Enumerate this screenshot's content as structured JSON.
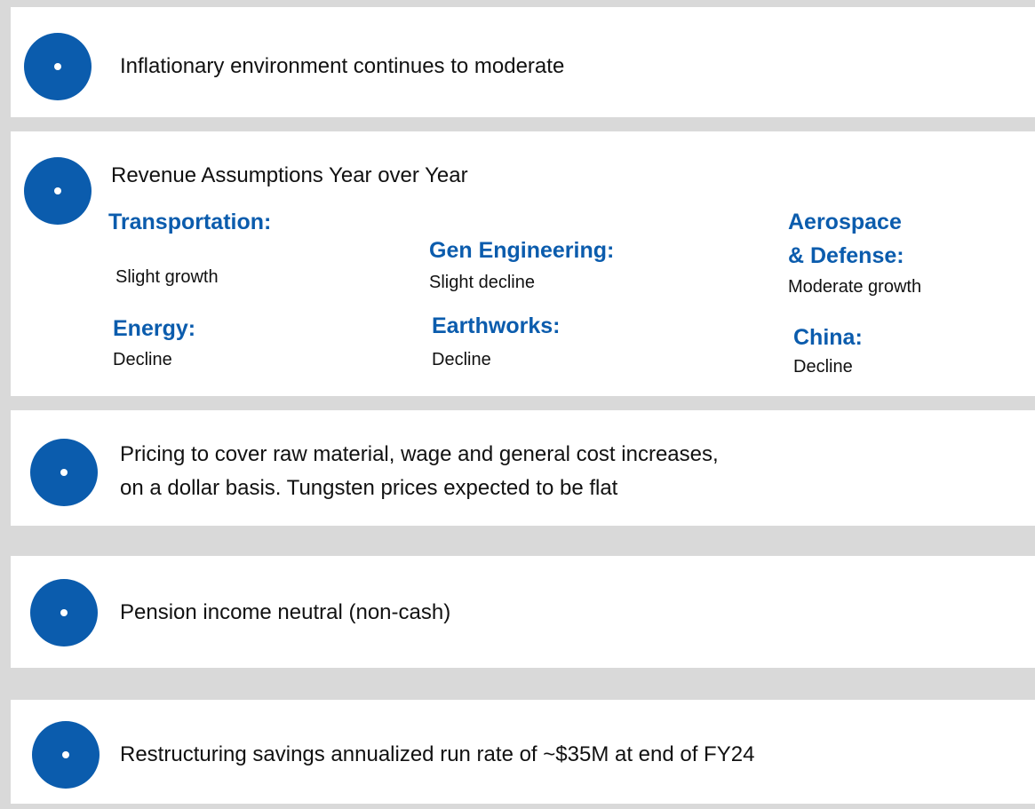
{
  "items": [
    {
      "text": "Inflationary environment continues to moderate"
    },
    {
      "text": "Revenue Assumptions Year over Year",
      "segments": [
        {
          "name": [
            "Transportation:"
          ],
          "outlook": "Slight growth"
        },
        {
          "name": [
            "Gen Engineering:"
          ],
          "outlook": "Slight decline"
        },
        {
          "name": [
            "Aerospace",
            "& Defense:"
          ],
          "outlook": "Moderate growth"
        },
        {
          "name": [
            "Energy:"
          ],
          "outlook": "Decline"
        },
        {
          "name": [
            "Earthworks:"
          ],
          "outlook": "Decline"
        },
        {
          "name": [
            "China:"
          ],
          "outlook": "Decline"
        }
      ]
    },
    {
      "lines": [
        "Pricing to cover raw material, wage and general cost increases,",
        "on a dollar basis. Tungsten prices expected to be flat"
      ]
    },
    {
      "text": "Pension income neutral (non-cash)"
    },
    {
      "text": "Restructuring savings annualized run rate of ~$35M at end of FY24"
    }
  ]
}
